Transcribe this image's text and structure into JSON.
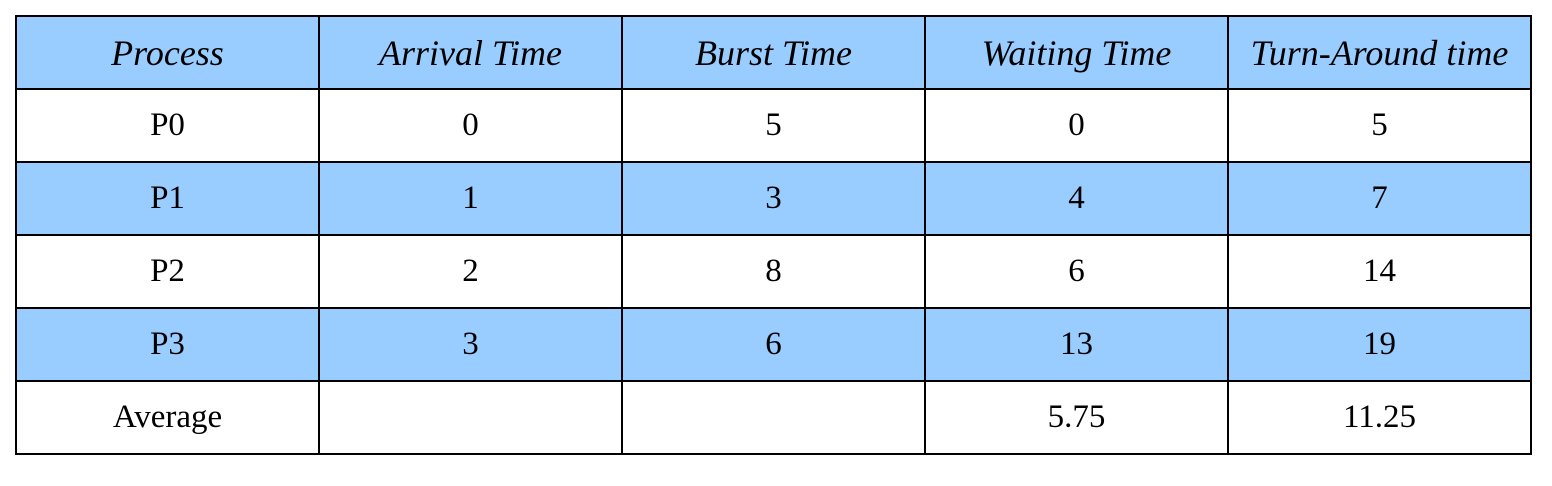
{
  "colors": {
    "header_fill": "#99ccff",
    "band_fill": "#99ccff",
    "plain_fill": "#ffffff",
    "border": "#000000"
  },
  "table": {
    "headers": [
      "Process",
      "Arrival Time",
      "Burst Time",
      "Waiting Time",
      "Turn-Around time"
    ],
    "rows": [
      [
        "P0",
        "0",
        "5",
        "0",
        "5"
      ],
      [
        "P1",
        "1",
        "3",
        "4",
        "7"
      ],
      [
        "P2",
        "2",
        "8",
        "6",
        "14"
      ],
      [
        "P3",
        "3",
        "6",
        "13",
        "19"
      ],
      [
        "Average",
        "",
        "",
        "5.75",
        "11.25"
      ]
    ]
  }
}
